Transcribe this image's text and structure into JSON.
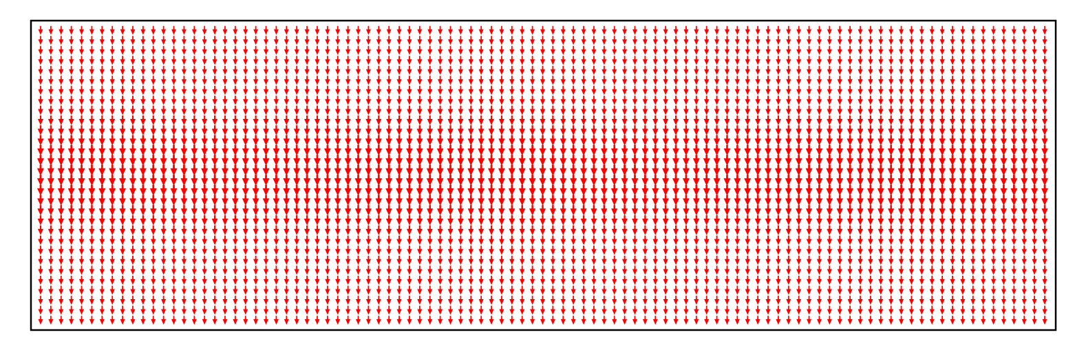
{
  "chart_data": {
    "type": "quiver",
    "title": "",
    "xlabel": "",
    "ylabel": "",
    "grid": false,
    "legend": "none",
    "axes_ticks": false,
    "arrow_color": "#ff0000",
    "frame_color": "#000000",
    "background": "#ffffff",
    "x_count": 99,
    "y_count": 30,
    "direction": "down",
    "rows_top_to_bottom": {
      "row_index": [
        0,
        1,
        2,
        3,
        4,
        5,
        6,
        7,
        8,
        9,
        10,
        11,
        12,
        13,
        14,
        15,
        16,
        17,
        18,
        19,
        20,
        21,
        22,
        23,
        24,
        25,
        26,
        27,
        28,
        29
      ],
      "magnitude": [
        0.42,
        0.43,
        0.44,
        0.45,
        0.46,
        0.47,
        0.48,
        0.5,
        0.55,
        0.63,
        0.74,
        0.85,
        0.93,
        0.98,
        1.0,
        1.0,
        0.98,
        0.93,
        0.85,
        0.74,
        0.63,
        0.55,
        0.5,
        0.48,
        0.47,
        0.46,
        0.45,
        0.44,
        0.43,
        0.42
      ]
    }
  }
}
